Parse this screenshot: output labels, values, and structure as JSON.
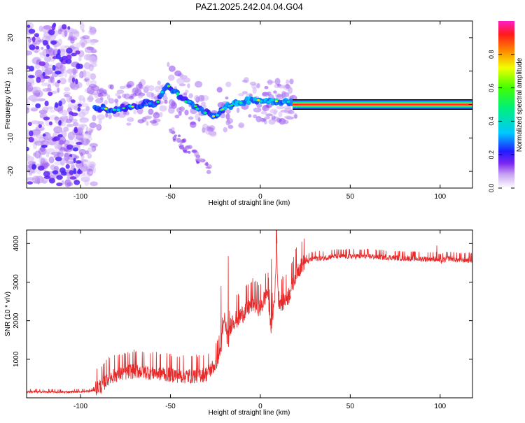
{
  "title": "PAZ1.2025.242.04.04.G04",
  "chart_data": [
    {
      "type": "heatmap",
      "title": "PAZ1.2025.242.04.04.G04",
      "xlabel": "Height of straight line (km)",
      "ylabel": "Frequency (Hz)",
      "xlim": [
        -130,
        118
      ],
      "ylim": [
        -25,
        25
      ],
      "xticks": [
        -100,
        -50,
        0,
        50,
        100
      ],
      "yticks": [
        -20,
        -10,
        0,
        10,
        20
      ],
      "colorbar": {
        "label": "Normalized spectral amplitude",
        "range": [
          0,
          1
        ],
        "ticks": [
          0.0,
          0.2,
          0.4,
          0.6,
          0.8
        ]
      },
      "ridge": [
        {
          "x": -90,
          "y": -1.0
        },
        {
          "x": -80,
          "y": -1.5
        },
        {
          "x": -70,
          "y": -0.5
        },
        {
          "x": -62,
          "y": 0.5
        },
        {
          "x": -58,
          "y": 0.0
        },
        {
          "x": -52,
          "y": 6.0
        },
        {
          "x": -46,
          "y": 3.0
        },
        {
          "x": -40,
          "y": 0.5
        },
        {
          "x": -32,
          "y": -1.5
        },
        {
          "x": -26,
          "y": -3.5
        },
        {
          "x": -20,
          "y": -1.0
        },
        {
          "x": -12,
          "y": 0.5
        },
        {
          "x": -5,
          "y": 1.5
        },
        {
          "x": 5,
          "y": 1.0
        },
        {
          "x": 10,
          "y": 1.0
        },
        {
          "x": 18,
          "y": 0.8
        },
        {
          "x": 118,
          "y": 0.0
        }
      ],
      "band": {
        "x_start": 18,
        "x_end": 118,
        "y": 0.0,
        "amplitude": 1.0
      }
    },
    {
      "type": "line",
      "xlabel": "Height of straight line (km)",
      "ylabel": "SNR (10 * v/v)",
      "xlim": [
        -130,
        118
      ],
      "ylim": [
        0,
        4350
      ],
      "xticks": [
        -100,
        -50,
        0,
        50,
        100
      ],
      "yticks": [
        1000,
        2000,
        3000,
        4000
      ],
      "series": [
        {
          "name": "SNR",
          "color": "#e8292a",
          "x": [
            -130,
            -110,
            -95,
            -88,
            -85,
            -80,
            -70,
            -60,
            -50,
            -40,
            -30,
            -25,
            -22,
            -20,
            -18,
            -16,
            -12,
            -8,
            -4,
            0,
            4,
            6,
            8,
            9,
            10,
            12,
            16,
            20,
            25,
            30,
            35,
            40,
            45,
            50,
            60,
            70,
            80,
            90,
            98,
            100,
            105,
            110,
            118
          ],
          "y": [
            150,
            140,
            160,
            250,
            450,
            550,
            650,
            600,
            550,
            500,
            560,
            800,
            1200,
            2000,
            1400,
            1900,
            2000,
            2200,
            2400,
            2250,
            2700,
            1800,
            2500,
            4000,
            2500,
            2400,
            2600,
            3200,
            3500,
            3600,
            3600,
            3650,
            3650,
            3650,
            3650,
            3620,
            3600,
            3580,
            3580,
            3520,
            3600,
            3550,
            3550
          ]
        }
      ]
    }
  ]
}
